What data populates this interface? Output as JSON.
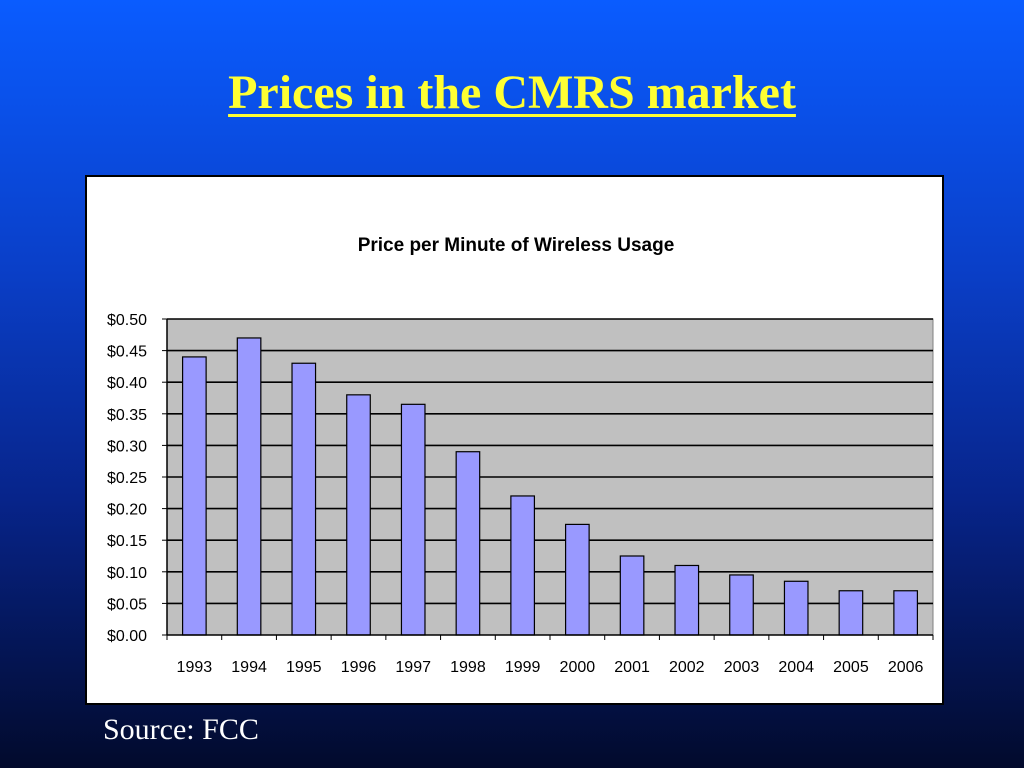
{
  "slide": {
    "title": "Prices in the CMRS market",
    "source": "Source: FCC"
  },
  "colors": {
    "title": "#ffff33",
    "bar_fill": "#9999ff",
    "plot_bg": "#c0c0c0"
  },
  "chart_data": {
    "type": "bar",
    "title": "Price per Minute of Wireless Usage",
    "xlabel": "",
    "ylabel": "",
    "categories": [
      "1993",
      "1994",
      "1995",
      "1996",
      "1997",
      "1998",
      "1999",
      "2000",
      "2001",
      "2002",
      "2003",
      "2004",
      "2005",
      "2006"
    ],
    "values": [
      0.44,
      0.47,
      0.43,
      0.38,
      0.365,
      0.29,
      0.22,
      0.175,
      0.125,
      0.11,
      0.095,
      0.085,
      0.07,
      0.07
    ],
    "ylim": [
      0,
      0.5
    ],
    "yticks": [
      "$0.00",
      "$0.05",
      "$0.10",
      "$0.15",
      "$0.20",
      "$0.25",
      "$0.30",
      "$0.35",
      "$0.40",
      "$0.45",
      "$0.50"
    ],
    "grid": true,
    "legend": "none"
  }
}
